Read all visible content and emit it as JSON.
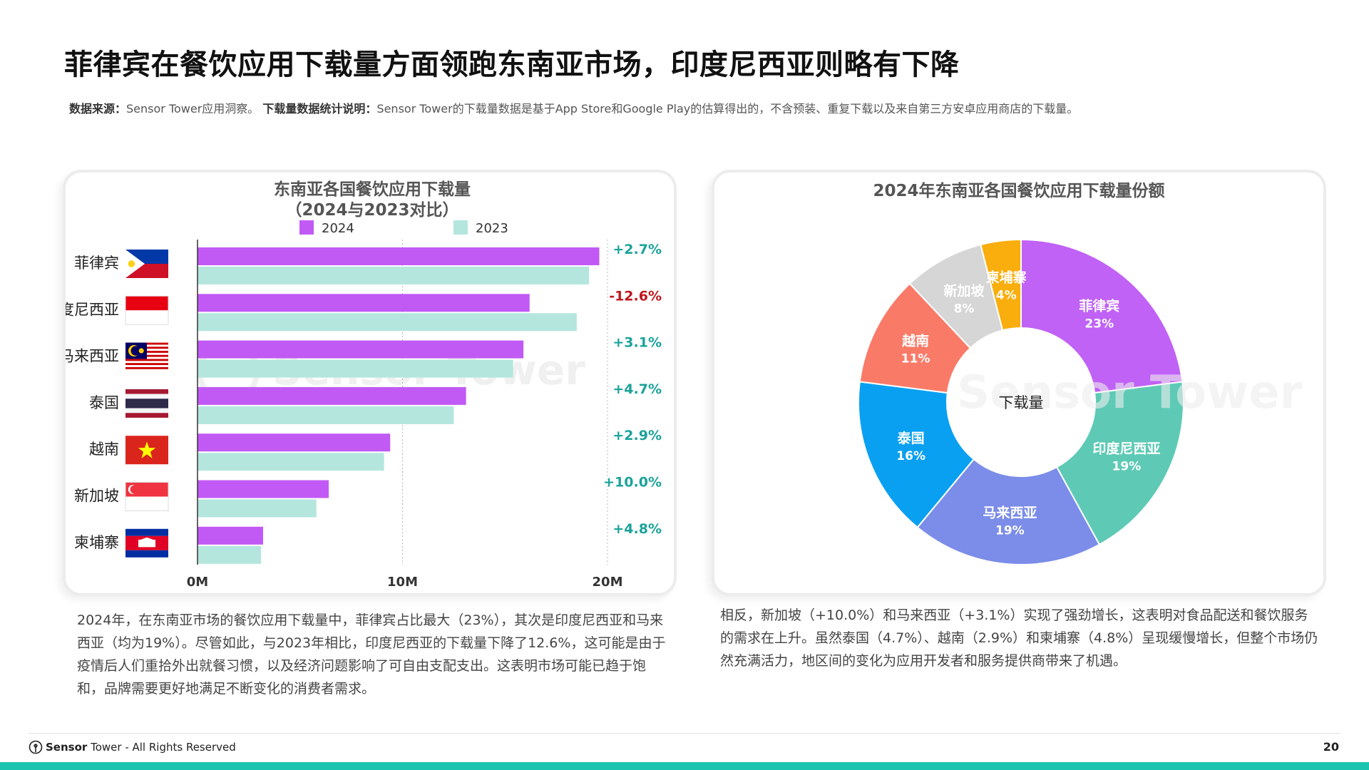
{
  "page": {
    "title": "菲律宾在餐饮应用下载量方面领跑东南亚市场，印度尼西亚则略有下降",
    "source_label": "数据来源：",
    "source_text": "Sensor Tower应用洞察。",
    "method_label": "下载量数据统计说明：",
    "method_text": "Sensor Tower的下载量数据是基于App Store和Google Play的估算得出的，不含预装、重复下载以及来自第三方安卓应用商店的下载量。",
    "left_caption": "2024年，在东南亚市场的餐饮应用下载量中，菲律宾占比最大（23%），其次是印度尼西亚和马来西亚（均为19%）。尽管如此，与2023年相比，印度尼西亚的下载量下降了12.6%，这可能是由于疫情后人们重拾外出就餐习惯，以及经济问题影响了可自由支配支出。这表明市场可能已趋于饱和，品牌需要更好地满足不断变化的消费者需求。",
    "right_caption": "相反，新加坡（+10.0%）和马来西亚（+3.1%）实现了强劲增长，这表明对食品配送和餐饮服务的需求在上升。虽然泰国（4.7%）、越南（2.9%）和柬埔寨（4.8%）呈现缓慢增长，但整个市场仍然充满活力，地区间的变化为应用开发者和服务提供商带来了机遇。",
    "watermark": "Sensor Tower",
    "footer_brand": "Sensor",
    "footer_brand2": "Tower",
    "footer_rights": " - All Rights Reserved",
    "page_number": "20"
  },
  "colors": {
    "series_2024": "#c15af5",
    "series_2023": "#b4e6de",
    "positive": "#1aa39a",
    "negative": "#c0171e",
    "footer_bar": "#1cc4b0"
  },
  "chart_data": [
    {
      "type": "bar",
      "orientation": "horizontal",
      "title": "东南亚各国餐饮应用下载量",
      "subtitle": "（2024与2023对比）",
      "categories": [
        "菲律宾",
        "印度尼西亚",
        "马来西亚",
        "泰国",
        "越南",
        "新加坡",
        "柬埔寨"
      ],
      "series": [
        {
          "name": "2024",
          "values": [
            19.6,
            16.2,
            15.9,
            13.1,
            9.4,
            6.4,
            3.2
          ]
        },
        {
          "name": "2023",
          "values": [
            19.1,
            18.5,
            15.4,
            12.5,
            9.1,
            5.8,
            3.1
          ]
        }
      ],
      "change_labels": [
        "+2.7%",
        "-12.6%",
        "+3.1%",
        "+4.7%",
        "+2.9%",
        "+10.0%",
        "+4.8%"
      ],
      "x_ticks": [
        "0M",
        "10M",
        "20M"
      ],
      "xlim": [
        0,
        20
      ],
      "grid": "vertical dotted",
      "legend": "top"
    },
    {
      "type": "pie",
      "donut": true,
      "title": "2024年东南亚各国餐饮应用下载量份额",
      "center_label": "下载量",
      "slices": [
        {
          "label": "菲律宾",
          "value": 23,
          "display": "23%",
          "color": "#c062f5"
        },
        {
          "label": "印度尼西亚",
          "value": 19,
          "display": "19%",
          "color": "#5ecab5"
        },
        {
          "label": "马来西亚",
          "value": 19,
          "display": "19%",
          "color": "#7b8de8"
        },
        {
          "label": "泰国",
          "value": 16,
          "display": "16%",
          "color": "#0aa0f2"
        },
        {
          "label": "越南",
          "value": 11,
          "display": "11%",
          "color": "#fa7a68"
        },
        {
          "label": "新加坡",
          "value": 8,
          "display": "8%",
          "color": "#d6d6d6"
        },
        {
          "label": "柬埔寨",
          "value": 4,
          "display": "4%",
          "color": "#f9ae0d"
        }
      ]
    }
  ]
}
